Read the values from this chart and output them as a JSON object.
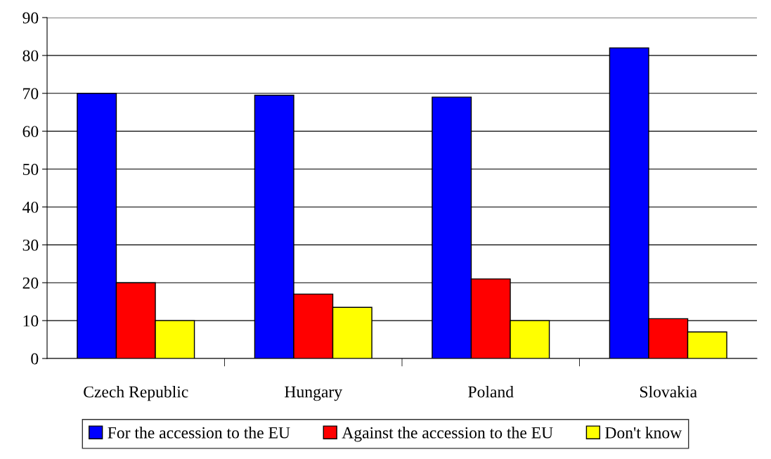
{
  "chart_data": {
    "type": "bar",
    "categories": [
      "Czech Republic",
      "Hungary",
      "Poland",
      "Slovakia"
    ],
    "series": [
      {
        "name": "For the accession to the EU",
        "color": "#0000ff",
        "values": [
          70,
          69.5,
          69,
          82
        ]
      },
      {
        "name": "Against the accession to the EU",
        "color": "#ff0000",
        "values": [
          20,
          17,
          21,
          10.5
        ]
      },
      {
        "name": "Don't know",
        "color": "#ffff00",
        "values": [
          10,
          13.5,
          10,
          7
        ]
      }
    ],
    "ylim": [
      0,
      90
    ],
    "yticks": [
      0,
      10,
      20,
      30,
      40,
      50,
      60,
      70,
      80,
      90
    ],
    "grid": "y",
    "legend": "bottom"
  }
}
